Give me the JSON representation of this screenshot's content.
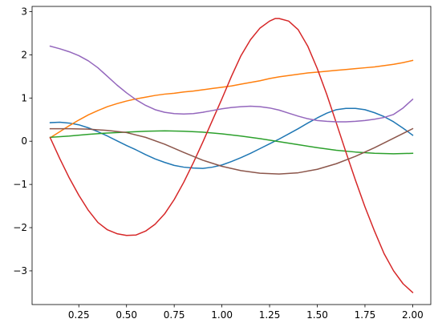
{
  "chart_data": {
    "type": "line",
    "title": "",
    "xlabel": "",
    "ylabel": "",
    "xlim": [
      0.005,
      2.095
    ],
    "ylim": [
      -3.78,
      3.12
    ],
    "grid": false,
    "legend": "none",
    "x_ticks": [
      {
        "value": 0.25,
        "label": "0.25"
      },
      {
        "value": 0.5,
        "label": "0.50"
      },
      {
        "value": 0.75,
        "label": "0.75"
      },
      {
        "value": 1.0,
        "label": "1.00"
      },
      {
        "value": 1.25,
        "label": "1.25"
      },
      {
        "value": 1.5,
        "label": "1.50"
      },
      {
        "value": 1.75,
        "label": "1.75"
      },
      {
        "value": 2.0,
        "label": "2.00"
      }
    ],
    "y_ticks": [
      {
        "value": -3,
        "label": "−3"
      },
      {
        "value": -2,
        "label": "−2"
      },
      {
        "value": -1,
        "label": "−1"
      },
      {
        "value": 0,
        "label": "0"
      },
      {
        "value": 1,
        "label": "1"
      },
      {
        "value": 2,
        "label": "2"
      },
      {
        "value": 3,
        "label": "3"
      }
    ],
    "series": [
      {
        "color": "#1f77b4",
        "points": [
          [
            0.1,
            0.43
          ],
          [
            0.15,
            0.44
          ],
          [
            0.2,
            0.42
          ],
          [
            0.25,
            0.38
          ],
          [
            0.3,
            0.31
          ],
          [
            0.35,
            0.22
          ],
          [
            0.4,
            0.12
          ],
          [
            0.45,
            0.01
          ],
          [
            0.5,
            -0.1
          ],
          [
            0.55,
            -0.2
          ],
          [
            0.6,
            -0.31
          ],
          [
            0.65,
            -0.41
          ],
          [
            0.7,
            -0.49
          ],
          [
            0.75,
            -0.56
          ],
          [
            0.8,
            -0.6
          ],
          [
            0.85,
            -0.62
          ],
          [
            0.9,
            -0.63
          ],
          [
            0.95,
            -0.6
          ],
          [
            1.0,
            -0.55
          ],
          [
            1.05,
            -0.47
          ],
          [
            1.1,
            -0.38
          ],
          [
            1.15,
            -0.28
          ],
          [
            1.2,
            -0.17
          ],
          [
            1.25,
            -0.06
          ],
          [
            1.3,
            0.05
          ],
          [
            1.35,
            0.17
          ],
          [
            1.4,
            0.29
          ],
          [
            1.45,
            0.42
          ],
          [
            1.5,
            0.54
          ],
          [
            1.55,
            0.65
          ],
          [
            1.6,
            0.73
          ],
          [
            1.65,
            0.76
          ],
          [
            1.7,
            0.76
          ],
          [
            1.75,
            0.73
          ],
          [
            1.8,
            0.66
          ],
          [
            1.85,
            0.57
          ],
          [
            1.9,
            0.45
          ],
          [
            1.95,
            0.3
          ],
          [
            2.0,
            0.14
          ]
        ]
      },
      {
        "color": "#ff7f0e",
        "points": [
          [
            0.1,
            0.08
          ],
          [
            0.15,
            0.22
          ],
          [
            0.2,
            0.36
          ],
          [
            0.25,
            0.49
          ],
          [
            0.3,
            0.61
          ],
          [
            0.35,
            0.71
          ],
          [
            0.4,
            0.8
          ],
          [
            0.45,
            0.87
          ],
          [
            0.5,
            0.93
          ],
          [
            0.55,
            0.98
          ],
          [
            0.6,
            1.02
          ],
          [
            0.65,
            1.06
          ],
          [
            0.7,
            1.09
          ],
          [
            0.75,
            1.11
          ],
          [
            0.8,
            1.14
          ],
          [
            0.85,
            1.16
          ],
          [
            0.9,
            1.19
          ],
          [
            0.95,
            1.22
          ],
          [
            1.0,
            1.25
          ],
          [
            1.05,
            1.28
          ],
          [
            1.1,
            1.32
          ],
          [
            1.15,
            1.36
          ],
          [
            1.2,
            1.4
          ],
          [
            1.25,
            1.45
          ],
          [
            1.3,
            1.49
          ],
          [
            1.35,
            1.52
          ],
          [
            1.4,
            1.55
          ],
          [
            1.45,
            1.58
          ],
          [
            1.5,
            1.6
          ],
          [
            1.55,
            1.62
          ],
          [
            1.6,
            1.64
          ],
          [
            1.65,
            1.66
          ],
          [
            1.7,
            1.68
          ],
          [
            1.75,
            1.7
          ],
          [
            1.8,
            1.72
          ],
          [
            1.85,
            1.75
          ],
          [
            1.9,
            1.78
          ],
          [
            1.95,
            1.82
          ],
          [
            2.0,
            1.87
          ]
        ]
      },
      {
        "color": "#2ca02c",
        "points": [
          [
            0.1,
            0.09
          ],
          [
            0.2,
            0.12
          ],
          [
            0.3,
            0.16
          ],
          [
            0.4,
            0.19
          ],
          [
            0.5,
            0.21
          ],
          [
            0.6,
            0.23
          ],
          [
            0.7,
            0.24
          ],
          [
            0.8,
            0.23
          ],
          [
            0.9,
            0.21
          ],
          [
            1.0,
            0.17
          ],
          [
            1.1,
            0.12
          ],
          [
            1.2,
            0.06
          ],
          [
            1.3,
            -0.01
          ],
          [
            1.4,
            -0.08
          ],
          [
            1.5,
            -0.15
          ],
          [
            1.6,
            -0.21
          ],
          [
            1.7,
            -0.25
          ],
          [
            1.8,
            -0.28
          ],
          [
            1.9,
            -0.29
          ],
          [
            2.0,
            -0.28
          ]
        ]
      },
      {
        "color": "#d62728",
        "points": [
          [
            0.1,
            0.08
          ],
          [
            0.15,
            -0.4
          ],
          [
            0.2,
            -0.85
          ],
          [
            0.25,
            -1.25
          ],
          [
            0.3,
            -1.6
          ],
          [
            0.35,
            -1.88
          ],
          [
            0.4,
            -2.05
          ],
          [
            0.45,
            -2.14
          ],
          [
            0.5,
            -2.18
          ],
          [
            0.55,
            -2.17
          ],
          [
            0.6,
            -2.08
          ],
          [
            0.65,
            -1.92
          ],
          [
            0.7,
            -1.68
          ],
          [
            0.75,
            -1.35
          ],
          [
            0.8,
            -0.95
          ],
          [
            0.85,
            -0.5
          ],
          [
            0.9,
            -0.02
          ],
          [
            0.95,
            0.48
          ],
          [
            1.0,
            0.98
          ],
          [
            1.05,
            1.5
          ],
          [
            1.1,
            1.98
          ],
          [
            1.15,
            2.35
          ],
          [
            1.2,
            2.62
          ],
          [
            1.25,
            2.78
          ],
          [
            1.28,
            2.84
          ],
          [
            1.3,
            2.84
          ],
          [
            1.35,
            2.78
          ],
          [
            1.4,
            2.58
          ],
          [
            1.45,
            2.2
          ],
          [
            1.5,
            1.68
          ],
          [
            1.55,
            1.08
          ],
          [
            1.6,
            0.42
          ],
          [
            1.65,
            -0.25
          ],
          [
            1.7,
            -0.9
          ],
          [
            1.75,
            -1.52
          ],
          [
            1.8,
            -2.08
          ],
          [
            1.85,
            -2.6
          ],
          [
            1.9,
            -3.0
          ],
          [
            1.95,
            -3.3
          ],
          [
            2.0,
            -3.5
          ]
        ]
      },
      {
        "color": "#9467bd",
        "points": [
          [
            0.1,
            2.2
          ],
          [
            0.15,
            2.14
          ],
          [
            0.2,
            2.07
          ],
          [
            0.25,
            1.98
          ],
          [
            0.3,
            1.86
          ],
          [
            0.35,
            1.7
          ],
          [
            0.4,
            1.5
          ],
          [
            0.45,
            1.3
          ],
          [
            0.5,
            1.12
          ],
          [
            0.55,
            0.96
          ],
          [
            0.6,
            0.83
          ],
          [
            0.65,
            0.73
          ],
          [
            0.7,
            0.67
          ],
          [
            0.75,
            0.64
          ],
          [
            0.8,
            0.63
          ],
          [
            0.85,
            0.64
          ],
          [
            0.9,
            0.67
          ],
          [
            0.95,
            0.71
          ],
          [
            1.0,
            0.75
          ],
          [
            1.05,
            0.78
          ],
          [
            1.1,
            0.8
          ],
          [
            1.15,
            0.81
          ],
          [
            1.2,
            0.8
          ],
          [
            1.25,
            0.77
          ],
          [
            1.3,
            0.72
          ],
          [
            1.35,
            0.65
          ],
          [
            1.4,
            0.58
          ],
          [
            1.45,
            0.52
          ],
          [
            1.5,
            0.48
          ],
          [
            1.55,
            0.46
          ],
          [
            1.6,
            0.45
          ],
          [
            1.65,
            0.45
          ],
          [
            1.7,
            0.46
          ],
          [
            1.75,
            0.48
          ],
          [
            1.8,
            0.51
          ],
          [
            1.85,
            0.55
          ],
          [
            1.9,
            0.62
          ],
          [
            1.95,
            0.77
          ],
          [
            2.0,
            0.97
          ]
        ]
      },
      {
        "color": "#8c564b",
        "points": [
          [
            0.1,
            0.29
          ],
          [
            0.2,
            0.29
          ],
          [
            0.3,
            0.28
          ],
          [
            0.4,
            0.25
          ],
          [
            0.5,
            0.2
          ],
          [
            0.6,
            0.09
          ],
          [
            0.7,
            -0.07
          ],
          [
            0.8,
            -0.26
          ],
          [
            0.9,
            -0.44
          ],
          [
            1.0,
            -0.58
          ],
          [
            1.1,
            -0.68
          ],
          [
            1.2,
            -0.74
          ],
          [
            1.3,
            -0.76
          ],
          [
            1.4,
            -0.73
          ],
          [
            1.5,
            -0.65
          ],
          [
            1.6,
            -0.52
          ],
          [
            1.7,
            -0.35
          ],
          [
            1.8,
            -0.15
          ],
          [
            1.9,
            0.07
          ],
          [
            2.0,
            0.29
          ]
        ]
      }
    ]
  }
}
